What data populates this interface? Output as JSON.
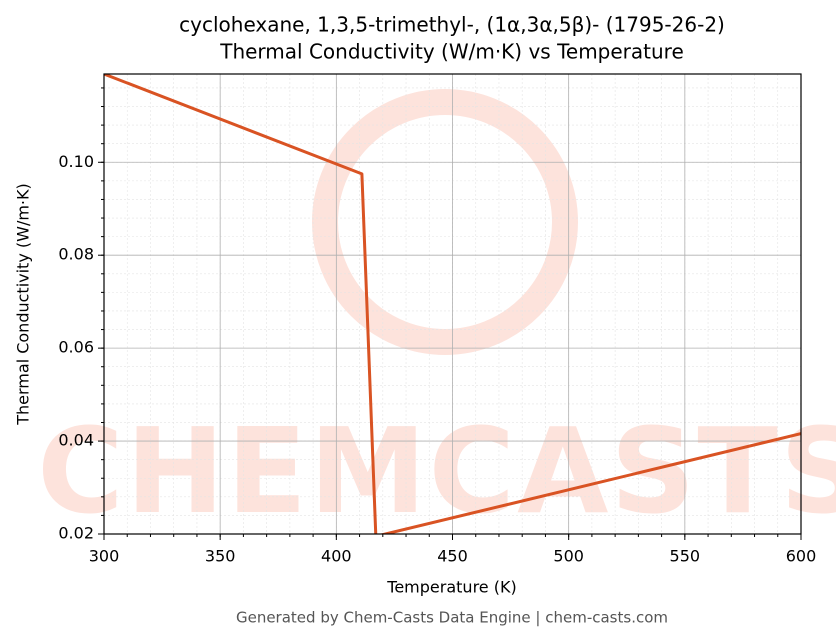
{
  "chart_data": {
    "type": "line",
    "title": "cyclohexane, 1,3,5-trimethyl-, (1α,3α,5β)- (1795-26-2)",
    "subtitle": "Thermal Conductivity (W/m·K) vs Temperature",
    "x_label": "Temperature (K)",
    "y_label": "Thermal Conductivity (W/m·K)",
    "watermark": "CHEMCASTS",
    "footer": "Generated by Chem-Casts Data Engine | chem-casts.com",
    "x": [
      300,
      411,
      417,
      600
    ],
    "series": [
      {
        "name": "Thermal Conductivity",
        "color": "#d95323",
        "values": [
          0.119,
          0.0975,
          0.0195,
          0.0416
        ]
      }
    ],
    "xlim": [
      300,
      600
    ],
    "xticks": [
      300,
      350,
      400,
      450,
      500,
      550,
      600
    ],
    "ylim": [
      0.02,
      0.119
    ],
    "yticks": [
      {
        "value": 0.02,
        "label": "0.02"
      },
      {
        "value": 0.04,
        "label": "0.04"
      },
      {
        "value": 0.06,
        "label": "0.06"
      },
      {
        "value": 0.08,
        "label": "0.08"
      },
      {
        "value": 0.1,
        "label": "0.10"
      }
    ],
    "grid": true
  }
}
